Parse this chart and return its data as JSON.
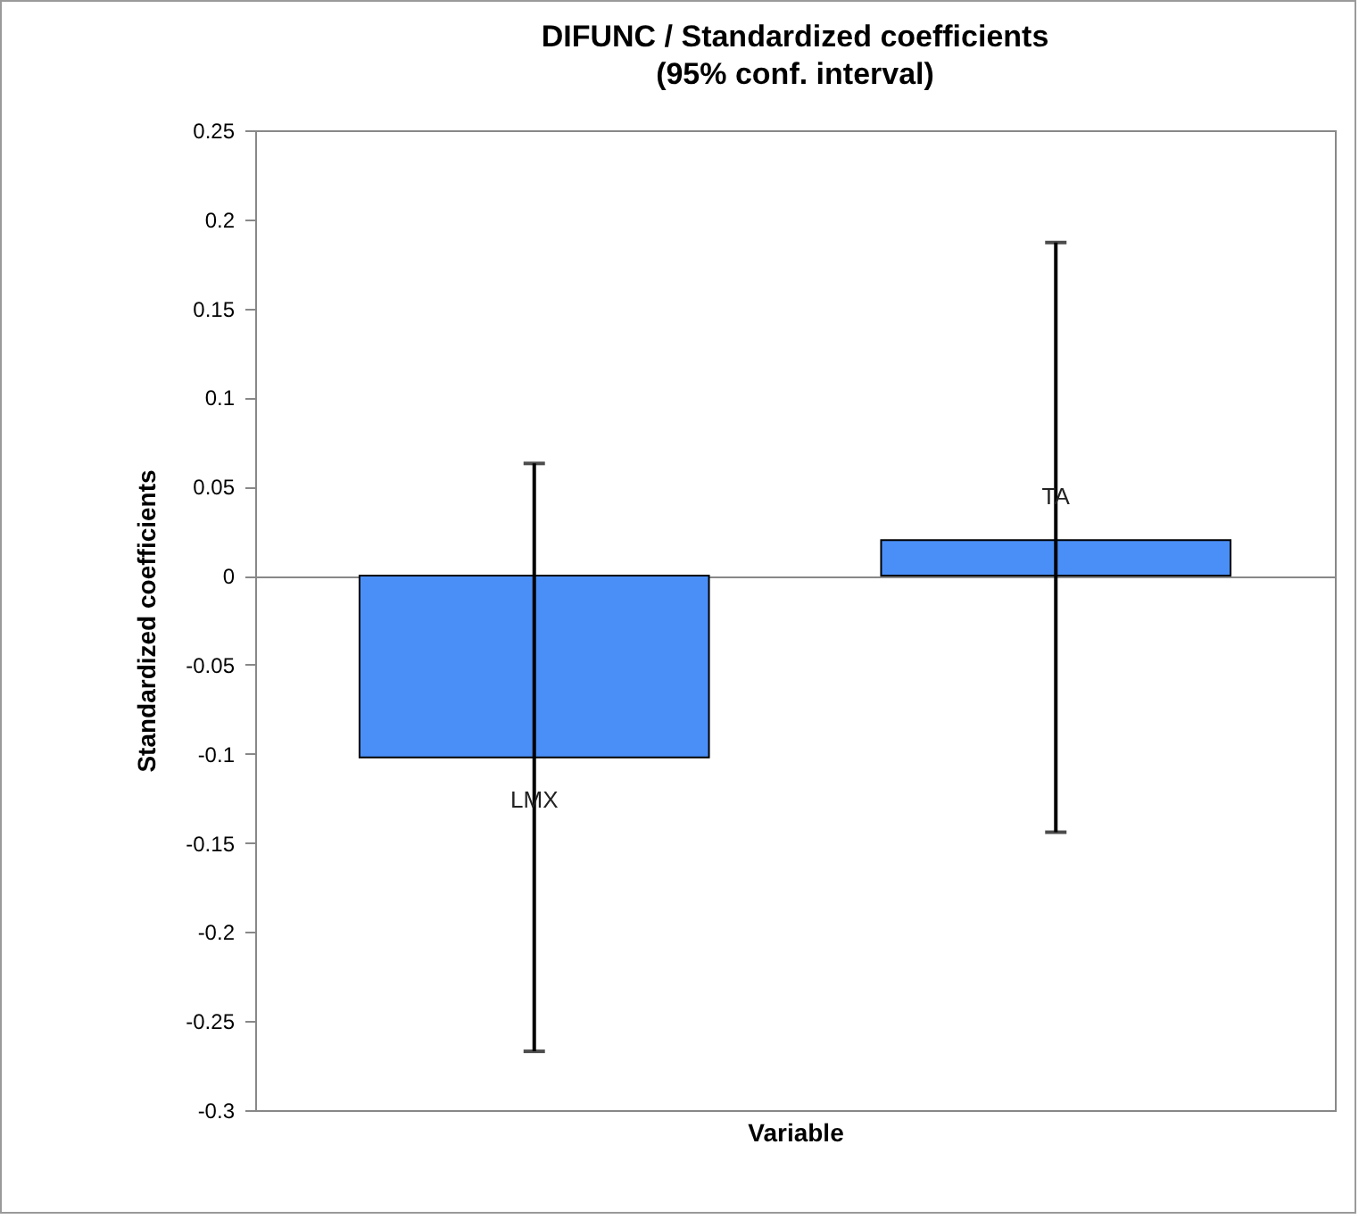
{
  "chart_data": {
    "type": "bar",
    "title": "DIFUNC / Standardized coefficients",
    "subtitle": "(95% conf. interval)",
    "xlabel": "Variable",
    "ylabel": "Standardized coefficients",
    "categories": [
      "LMX",
      "TA"
    ],
    "values": [
      -0.102,
      0.02
    ],
    "errors": [
      [
        -0.267,
        0.063
      ],
      [
        -0.144,
        0.187
      ]
    ],
    "color": "#4a8ff7",
    "ylim": [
      -0.3,
      0.25
    ],
    "yticks": [
      -0.3,
      -0.25,
      -0.2,
      -0.15,
      -0.1,
      -0.05,
      0,
      0.05,
      0.1,
      0.15,
      0.2,
      0.25
    ],
    "tick_labels": "y"
  }
}
